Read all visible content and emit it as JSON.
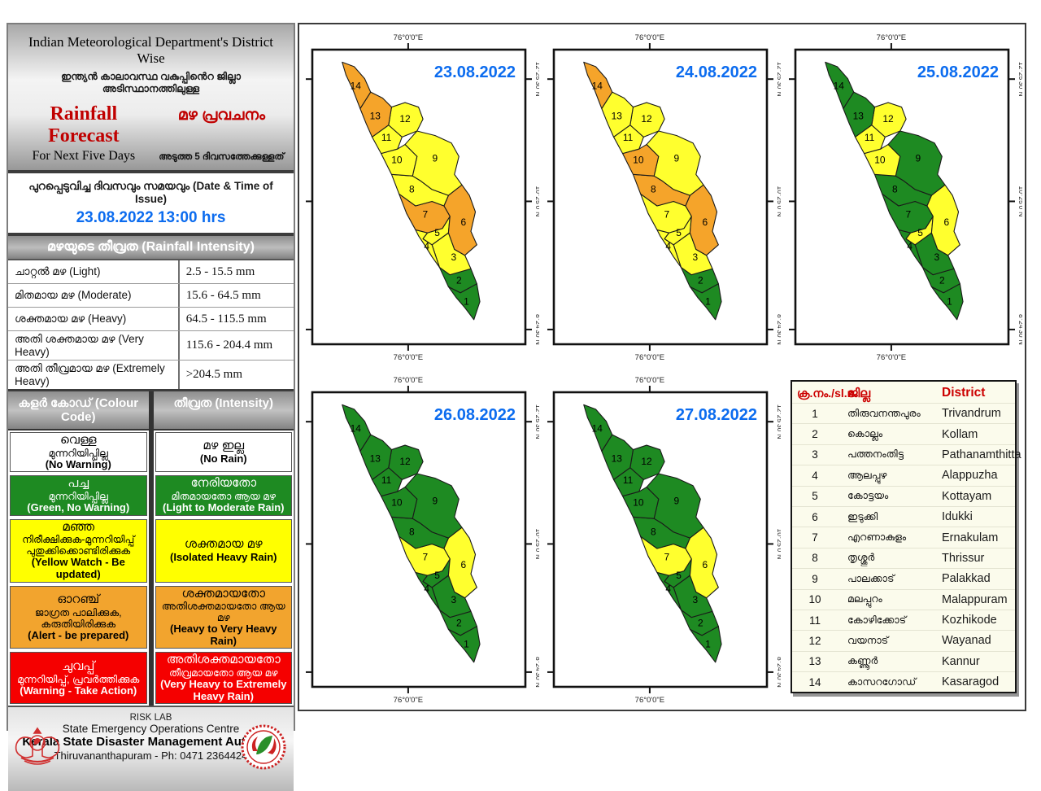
{
  "sidebar": {
    "title_en": "Indian Meteorological Department's District Wise",
    "title_ml": "ഇന്ത്യൻ കാലാവസ്ഥ വകുപ്പിൻെറ ജില്ലാ  അടിസ്ഥാനത്തിലുള്ള",
    "forecast_en": "Rainfall Forecast",
    "forecast_ml": "മഴ പ്രവചനം",
    "subtitle_en": "For Next Five Days",
    "subtitle_ml": "അടുത്ത 5 ദിവസത്തേക്കുള്ളത്",
    "issue_label": "പുറപ്പെടുവിച്ച ദിവസവും സമയവും  (Date & Time of Issue)",
    "issue_value": "23.08.2022 13:00 hrs",
    "intensity_header": "മഴയുടെ തീവ്രത (Rainfall Intensity)",
    "intensity_rows": [
      {
        "label": "ചാറ്റൽ മഴ (Light)",
        "range": "2.5 - 15.5 mm"
      },
      {
        "label": "മിതമായ മഴ (Moderate)",
        "range": "15.6 - 64.5 mm"
      },
      {
        "label": "ശക്തമായ മഴ (Heavy)",
        "range": "64.5 - 115.5 mm"
      },
      {
        "label": "അതി ശക്തമായ മഴ  (Very Heavy)",
        "range": "115.6 - 204.4 mm"
      },
      {
        "label": "അതി തീവ്രമായ മഴ (Extremely Heavy)",
        "range": ">204.5 mm"
      }
    ],
    "colour_header": "കളർ കോഡ് (Colour Code)",
    "intensity_col_header": "തീവ്രത (Intensity)",
    "colour_rows": [
      {
        "key": "white",
        "bg": "#ffffff",
        "fg": "#000000",
        "left": [
          "വെള്ള",
          "മുന്നറിയിപ്പില്ല",
          "(No Warning)"
        ],
        "right": [
          "മഴ ഇല്ല",
          "(No Rain)"
        ]
      },
      {
        "key": "green",
        "bg": "#1e8a22",
        "fg": "#ffffff",
        "left": [
          "പച്ച",
          "മുന്നറിയിപ്പില്ല",
          "(Green, No Warning)"
        ],
        "right": [
          "നേരിയതോ",
          "മിതമായതോ ആയ മഴ",
          "(Light to Moderate Rain)"
        ]
      },
      {
        "key": "yellow",
        "bg": "#ffff00",
        "fg": "#000000",
        "left": [
          "മഞ്ഞ",
          "നിരീക്ഷിക്കുക-മുന്നറിയിപ്പ്",
          "പുതുക്കിക്കൊണ്ടിരിക്കുക",
          "(Yellow Watch - Be updated)"
        ],
        "right": [
          "ശക്തമായ  മഴ",
          "(Isolated Heavy Rain)"
        ]
      },
      {
        "key": "orange",
        "bg": "#f2a42e",
        "fg": "#000000",
        "left": [
          "ഓറഞ്ച്",
          "ജാഗ്രത  പാലിക്കുക, കരുതിയിരിക്കുക",
          "(Alert - be prepared)"
        ],
        "right": [
          "ശക്തമായതോ",
          "അതിശക്തമായതോ ആയ മഴ",
          "(Heavy to Very Heavy Rain)"
        ]
      },
      {
        "key": "red",
        "bg": "#f50000",
        "fg": "#ffffff",
        "left": [
          "ചുവപ്പ്",
          "മുന്നറിയിപ്പ്, പ്രവർത്തിക്കുക",
          "(Warning - Take Action)"
        ],
        "right": [
          "അതിശക്തമായതോ",
          "തീവ്രമായതോ ആയ മഴ",
          "(Very Heavy to Extremely Heavy Rain)"
        ]
      }
    ],
    "footer": {
      "line1": "RISK LAB",
      "line2": "State Emergency Operations Centre",
      "line3": "Kerala State Disaster Management Authority",
      "line4": "Thiruvananthapuram - Ph: 0471 2364424"
    }
  },
  "maps": {
    "lon_label": "76°0'0\"E",
    "lat_labels": [
      "12°25'30\"N",
      "10°25'0\"N",
      "8°24'30\"N"
    ],
    "panels": [
      {
        "date": "23.08.2022",
        "warnings": [
          "green",
          "green",
          "yellow",
          "yellow",
          "yellow",
          "orange",
          "orange",
          "yellow",
          "yellow",
          "yellow",
          "yellow",
          "yellow",
          "orange",
          "orange"
        ]
      },
      {
        "date": "24.08.2022",
        "warnings": [
          "green",
          "green",
          "yellow",
          "yellow",
          "yellow",
          "orange",
          "yellow",
          "orange",
          "yellow",
          "orange",
          "yellow",
          "yellow",
          "yellow",
          "orange"
        ]
      },
      {
        "date": "25.08.2022",
        "warnings": [
          "green",
          "green",
          "green",
          "green",
          "yellow",
          "yellow",
          "green",
          "green",
          "green",
          "yellow",
          "yellow",
          "yellow",
          "green",
          "green"
        ]
      },
      {
        "date": "26.08.2022",
        "warnings": [
          "green",
          "green",
          "green",
          "green",
          "green",
          "yellow",
          "yellow",
          "green",
          "green",
          "green",
          "green",
          "green",
          "green",
          "green"
        ]
      },
      {
        "date": "27.08.2022",
        "warnings": [
          "green",
          "green",
          "green",
          "green",
          "green",
          "yellow",
          "yellow",
          "green",
          "green",
          "green",
          "green",
          "green",
          "green",
          "green"
        ]
      }
    ]
  },
  "legend_table": {
    "headers": {
      "no": "ക്ര.നം./sl.n.",
      "ml": "ജില്ല",
      "en": "District"
    },
    "rows": [
      {
        "no": "1",
        "ml": "തിരുവനന്തപുരം",
        "en": "Trivandrum"
      },
      {
        "no": "2",
        "ml": "കൊല്ലം",
        "en": "Kollam"
      },
      {
        "no": "3",
        "ml": "പത്തനംതിട്ട",
        "en": "Pathanamthitta"
      },
      {
        "no": "4",
        "ml": "ആലപ്പുഴ",
        "en": "Alappuzha"
      },
      {
        "no": "5",
        "ml": "കോട്ടയം",
        "en": "Kottayam"
      },
      {
        "no": "6",
        "ml": "ഇടുക്കി",
        "en": "Idukki"
      },
      {
        "no": "7",
        "ml": "എറണാകുളം",
        "en": "Ernakulam"
      },
      {
        "no": "8",
        "ml": "തൃശ്ശൂർ",
        "en": "Thrissur"
      },
      {
        "no": "9",
        "ml": "പാലക്കാട്",
        "en": "Palakkad"
      },
      {
        "no": "10",
        "ml": "മലപ്പുറം",
        "en": "Malappuram"
      },
      {
        "no": "11",
        "ml": "കോഴിക്കോട്",
        "en": "Kozhikode"
      },
      {
        "no": "12",
        "ml": "വയനാട്",
        "en": "Wayanad"
      },
      {
        "no": "13",
        "ml": "കണ്ണൂർ",
        "en": "Kannur"
      },
      {
        "no": "14",
        "ml": "കാസറഗോഡ്",
        "en": "Kasaragod"
      }
    ]
  },
  "colors": {
    "green": "#1e8a22",
    "yellow": "#ffff2e",
    "orange": "#f5a42a",
    "red": "#f50000",
    "date_blue": "#0c6cef",
    "header_red": "#cc0000"
  }
}
